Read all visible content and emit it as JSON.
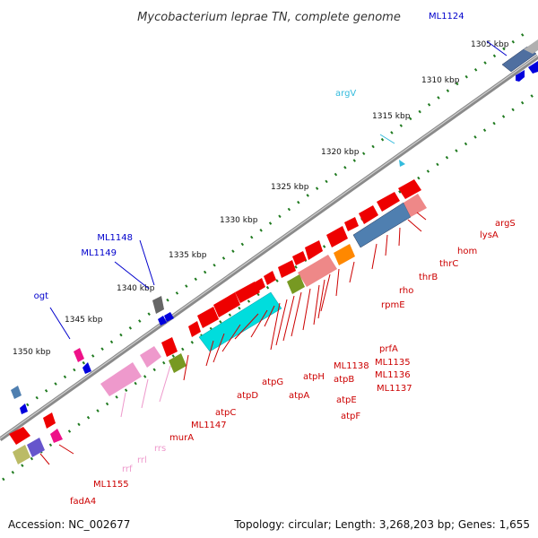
{
  "title": "Mycobacterium leprae TN, complete genome",
  "footer": {
    "accession": "Accession: NC_002677",
    "topology": "Topology: circular; Length: 3,268,203 bp; Genes: 1,655"
  },
  "colors": {
    "backbone": "#8a8a8a",
    "tick_forward": "#1f7a1f",
    "tick_reverse": "#1f7a1f",
    "label_red": "#cc0000",
    "label_blue": "#0000cc",
    "label_cyan": "#33bbdd",
    "label_pink": "#ee99cc"
  },
  "kbp_labels": [
    "1305 kbp",
    "1310 kbp",
    "1315 kbp",
    "1320 kbp",
    "1325 kbp",
    "1330 kbp",
    "1335 kbp",
    "1340 kbp",
    "1345 kbp",
    "1350 kbp"
  ],
  "gene_labels": [
    {
      "text": "argS",
      "color": "#cc0000"
    },
    {
      "text": "lysA",
      "color": "#cc0000"
    },
    {
      "text": "hom",
      "color": "#cc0000"
    },
    {
      "text": "thrC",
      "color": "#cc0000"
    },
    {
      "text": "thrB",
      "color": "#cc0000"
    },
    {
      "text": "rho",
      "color": "#cc0000"
    },
    {
      "text": "rpmE",
      "color": "#cc0000"
    },
    {
      "text": "prfA",
      "color": "#cc0000"
    },
    {
      "text": "ML1135",
      "color": "#cc0000"
    },
    {
      "text": "ML1136",
      "color": "#cc0000"
    },
    {
      "text": "ML1137",
      "color": "#cc0000"
    },
    {
      "text": "ML1138",
      "color": "#cc0000"
    },
    {
      "text": "atpB",
      "color": "#cc0000"
    },
    {
      "text": "atpE",
      "color": "#cc0000"
    },
    {
      "text": "atpF",
      "color": "#cc0000"
    },
    {
      "text": "atpH",
      "color": "#cc0000"
    },
    {
      "text": "atpA",
      "color": "#cc0000"
    },
    {
      "text": "atpG",
      "color": "#cc0000"
    },
    {
      "text": "atpD",
      "color": "#cc0000"
    },
    {
      "text": "atpC",
      "color": "#cc0000"
    },
    {
      "text": "ML1147",
      "color": "#cc0000"
    },
    {
      "text": "murA",
      "color": "#cc0000"
    },
    {
      "text": "rrs",
      "color": "#ee99cc"
    },
    {
      "text": "rrl",
      "color": "#ee99cc"
    },
    {
      "text": "rrf",
      "color": "#ee99cc"
    },
    {
      "text": "ML1155",
      "color": "#cc0000"
    },
    {
      "text": "fadA4",
      "color": "#cc0000"
    },
    {
      "text": "ML1124",
      "color": "#0000cc"
    },
    {
      "text": "argV",
      "color": "#33bbdd"
    },
    {
      "text": "ML1148",
      "color": "#0000cc"
    },
    {
      "text": "ML1149",
      "color": "#0000cc"
    },
    {
      "text": "ogt",
      "color": "#0000cc"
    }
  ]
}
